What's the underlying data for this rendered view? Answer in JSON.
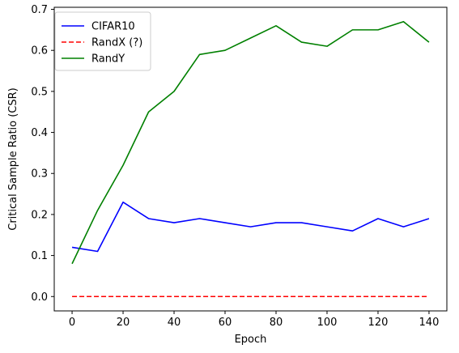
{
  "chart_data": {
    "type": "line",
    "xlabel": "Epoch",
    "ylabel": "Critical Sample Ratio (CSR)",
    "xlim": [
      -7,
      147
    ],
    "ylim": [
      -0.035,
      0.705
    ],
    "xticks": [
      0,
      20,
      40,
      60,
      80,
      100,
      120,
      140
    ],
    "yticks": [
      0.0,
      0.1,
      0.2,
      0.3,
      0.4,
      0.5,
      0.6,
      0.7
    ],
    "grid": false,
    "legend_position": "top-left",
    "x": [
      0,
      10,
      20,
      30,
      40,
      50,
      60,
      70,
      80,
      90,
      100,
      110,
      120,
      130,
      140
    ],
    "series": [
      {
        "name": "CIFAR10",
        "color": "#0000ff",
        "style": "solid",
        "values": [
          0.12,
          0.11,
          0.23,
          0.19,
          0.18,
          0.19,
          0.18,
          0.17,
          0.18,
          0.18,
          0.17,
          0.16,
          0.19,
          0.17,
          0.19
        ]
      },
      {
        "name": "RandX (?)",
        "color": "#ff0000",
        "style": "dashed",
        "values": [
          0,
          0,
          0,
          0,
          0,
          0,
          0,
          0,
          0,
          0,
          0,
          0,
          0,
          0,
          0
        ]
      },
      {
        "name": "RandY",
        "color": "#008000",
        "style": "solid",
        "values": [
          0.08,
          0.21,
          0.32,
          0.45,
          0.5,
          0.59,
          0.6,
          0.63,
          0.66,
          0.62,
          0.61,
          0.65,
          0.65,
          0.67,
          0.62
        ]
      }
    ]
  }
}
